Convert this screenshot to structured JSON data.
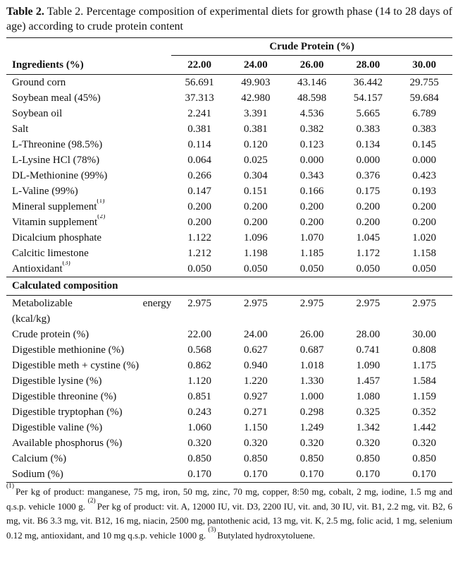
{
  "title": {
    "label": "Table 2.",
    "text": " Table 2. Percentage composition of experimental diets for growth phase (14 to 28 days of age) according to crude protein content"
  },
  "table": {
    "group_header": "Crude Protein (%)",
    "row_header": "Ingredients (%)",
    "columns": [
      "22.00",
      "24.00",
      "26.00",
      "28.00",
      "30.00"
    ],
    "ingredients": [
      {
        "name": "Ground corn",
        "sup": "",
        "values": [
          "56.691",
          "49.903",
          "43.146",
          "36.442",
          "29.755"
        ]
      },
      {
        "name": "Soybean meal (45%)",
        "sup": "",
        "values": [
          "37.313",
          "42.980",
          "48.598",
          "54.157",
          "59.684"
        ]
      },
      {
        "name": "Soybean oil",
        "sup": "",
        "values": [
          "2.241",
          "3.391",
          "4.536",
          "5.665",
          "6.789"
        ]
      },
      {
        "name": "Salt",
        "sup": "",
        "values": [
          "0.381",
          "0.381",
          "0.382",
          "0.383",
          "0.383"
        ]
      },
      {
        "name": "L-Threonine (98.5%)",
        "sup": "",
        "values": [
          "0.114",
          "0.120",
          "0.123",
          "0.134",
          "0.145"
        ]
      },
      {
        "name": "L-Lysine HCl (78%)",
        "sup": "",
        "values": [
          "0.064",
          "0.025",
          "0.000",
          "0.000",
          "0.000"
        ]
      },
      {
        "name": "DL-Methionine (99%)",
        "sup": "",
        "values": [
          "0.266",
          "0.304",
          "0.343",
          "0.376",
          "0.423"
        ]
      },
      {
        "name": "L-Valine (99%)",
        "sup": "",
        "values": [
          "0.147",
          "0.151",
          "0.166",
          "0.175",
          "0.193"
        ]
      },
      {
        "name": "Mineral supplement",
        "sup": "(1)",
        "values": [
          "0.200",
          "0.200",
          "0.200",
          "0.200",
          "0.200"
        ]
      },
      {
        "name": "Vitamin supplement",
        "sup": "(2)",
        "values": [
          "0.200",
          "0.200",
          "0.200",
          "0.200",
          "0.200"
        ]
      },
      {
        "name": "Dicalcium phosphate",
        "sup": "",
        "values": [
          "1.122",
          "1.096",
          "1.070",
          "1.045",
          "1.020"
        ]
      },
      {
        "name": "Calcitic limestone",
        "sup": "",
        "values": [
          "1.212",
          "1.198",
          "1.185",
          "1.172",
          "1.158"
        ]
      },
      {
        "name": "Antioxidant",
        "sup": "(3)",
        "values": [
          "0.050",
          "0.050",
          "0.050",
          "0.050",
          "0.050"
        ]
      }
    ],
    "section_header": "Calculated composition",
    "metabolizable": {
      "word1": "Metabolizable",
      "word2": "energy",
      "line2": "(kcal/kg)",
      "values": [
        "2.975",
        "2.975",
        "2.975",
        "2.975",
        "2.975"
      ]
    },
    "calculated": [
      {
        "name": "Crude protein (%)",
        "sup": "",
        "values": [
          "22.00",
          "24.00",
          "26.00",
          "28.00",
          "30.00"
        ]
      },
      {
        "name": "Digestible methionine (%)",
        "sup": "",
        "values": [
          "0.568",
          "0.627",
          "0.687",
          "0.741",
          "0.808"
        ]
      },
      {
        "name": "Digestible meth + cystine (%)",
        "sup": "",
        "values": [
          "0.862",
          "0.940",
          "1.018",
          "1.090",
          "1.175"
        ]
      },
      {
        "name": "Digestible lysine (%)",
        "sup": "",
        "values": [
          "1.120",
          "1.220",
          "1.330",
          "1.457",
          "1.584"
        ]
      },
      {
        "name": "Digestible threonine (%)",
        "sup": "",
        "values": [
          "0.851",
          "0.927",
          "1.000",
          "1.080",
          "1.159"
        ]
      },
      {
        "name": "Digestible tryptophan (%)",
        "sup": "",
        "values": [
          "0.243",
          "0.271",
          "0.298",
          "0.325",
          "0.352"
        ]
      },
      {
        "name": "Digestible valine (%)",
        "sup": "",
        "values": [
          "1.060",
          "1.150",
          "1.249",
          "1.342",
          "1.442"
        ]
      },
      {
        "name": "Available phosphorus (%)",
        "sup": "",
        "values": [
          "0.320",
          "0.320",
          "0.320",
          "0.320",
          "0.320"
        ]
      },
      {
        "name": "Calcium (%)",
        "sup": "",
        "values": [
          "0.850",
          "0.850",
          "0.850",
          "0.850",
          "0.850"
        ]
      },
      {
        "name": "Sodium (%)",
        "sup": "",
        "values": [
          "0.170",
          "0.170",
          "0.170",
          "0.170",
          "0.170"
        ]
      }
    ]
  },
  "footnotes": [
    {
      "marker": "(1)",
      "text": "Per kg of product: manganese, 75 mg, iron, 50 mg, zinc, 70 mg, copper, 8:50 mg, cobalt, 2 mg, iodine, 1.5 mg and q.s.p. vehicle 1000 g. "
    },
    {
      "marker": "(2)",
      "text": "Per kg of product: vit. A, 12000 IU, vit. D3, 2200 IU, vit. and, 30 IU, vit. B1, 2.2 mg, vit. B2, 6 mg, vit. B6 3.3 mg, vit. B12, 16 mg, niacin, 2500 mg, pantothenic acid, 13 mg, vit. K, 2.5 mg, folic acid, 1 mg, selenium 0.12 mg, antioxidant, and 10 mg q.s.p. vehicle 1000 g. "
    },
    {
      "marker": "(3)",
      "text": "Butylated hydroxytoluene."
    }
  ],
  "colors": {
    "text": "#111111",
    "rule": "#1a1a1a",
    "background": "#ffffff"
  }
}
